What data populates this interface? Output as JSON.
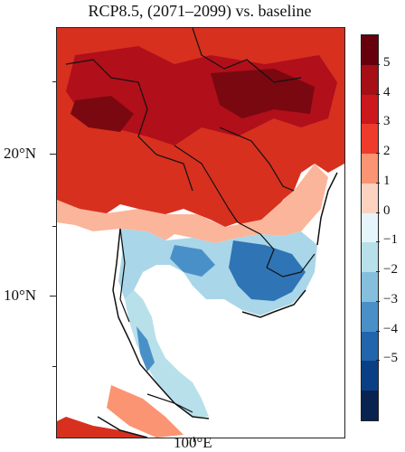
{
  "title": "RCP8.5, (2071–2099) vs. baseline",
  "lat_labels": [
    "20°N",
    "10°N"
  ],
  "lon_labels": [
    "100°E"
  ],
  "colorbar": {
    "labels": [
      "5",
      "4",
      "3",
      "2",
      "1",
      "0",
      "−1",
      "−2",
      "−3",
      "−4",
      "−5"
    ],
    "colors": [
      "#67000d",
      "#a50f15",
      "#cb181d",
      "#ef3b2c",
      "#fb9473",
      "#fcd2c0",
      "#e6f5fb",
      "#b7e0ea",
      "#86bfdc",
      "#4a90c8",
      "#2166ac",
      "#0b3f85",
      "#08234f"
    ]
  }
}
